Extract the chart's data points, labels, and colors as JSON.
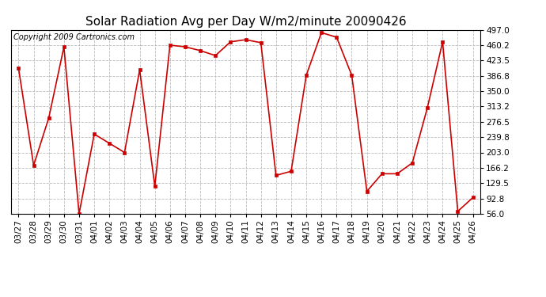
{
  "title": "Solar Radiation Avg per Day W/m2/minute 20090426",
  "copyright": "Copyright 2009 Cartronics.com",
  "dates": [
    "03/27",
    "03/28",
    "03/29",
    "03/30",
    "03/31",
    "04/01",
    "04/02",
    "04/03",
    "04/04",
    "04/05",
    "04/06",
    "04/07",
    "04/08",
    "04/09",
    "04/10",
    "04/11",
    "04/12",
    "04/13",
    "04/14",
    "04/15",
    "04/16",
    "04/17",
    "04/18",
    "04/19",
    "04/20",
    "04/21",
    "04/22",
    "04/23",
    "04/24",
    "04/25",
    "04/26"
  ],
  "values": [
    405,
    172,
    286,
    456,
    56,
    247,
    225,
    203,
    401,
    122,
    460,
    456,
    447,
    435,
    468,
    473,
    466,
    148,
    158,
    388,
    490,
    479,
    388,
    110,
    152,
    152,
    178,
    311,
    468,
    62,
    95
  ],
  "line_color": "#cc0000",
  "marker": "s",
  "marker_size": 3,
  "bg_color": "#ffffff",
  "grid_color": "#bbbbbb",
  "yticks": [
    56.0,
    92.8,
    129.5,
    166.2,
    203.0,
    239.8,
    276.5,
    313.2,
    350.0,
    386.8,
    423.5,
    460.2,
    497.0
  ],
  "ylim": [
    56.0,
    497.0
  ],
  "title_fontsize": 11,
  "tick_fontsize": 7.5,
  "copyright_fontsize": 7
}
